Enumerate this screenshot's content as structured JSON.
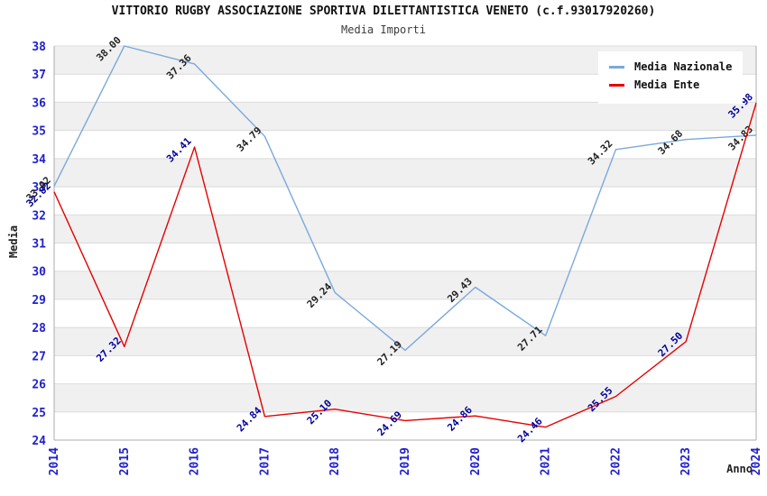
{
  "chart_data": {
    "type": "line",
    "title": "VITTORIO RUGBY ASSOCIAZIONE SPORTIVA DILETTANTISTICA VENETO (c.f.93017920260)",
    "subtitle": "Media Importi",
    "xlabel": "Anno",
    "ylabel": "Media",
    "x": [
      "2014",
      "2015",
      "2016",
      "2017",
      "2018",
      "2019",
      "2020",
      "2021",
      "2022",
      "2023",
      "2024"
    ],
    "series": [
      {
        "name": "Media Nazionale",
        "color": "#7AA9DC",
        "label_color": "#222222",
        "values": [
          33.02,
          38.0,
          37.36,
          34.79,
          29.24,
          27.19,
          29.43,
          27.71,
          34.32,
          34.68,
          34.83
        ]
      },
      {
        "name": "Media Ente",
        "color": "#E60000",
        "label_color": "#00009B",
        "values": [
          32.82,
          27.32,
          34.41,
          24.84,
          25.1,
          24.69,
          24.86,
          24.46,
          25.55,
          27.5,
          35.98
        ]
      }
    ],
    "ylim": [
      24,
      38
    ],
    "ytick_step": 1,
    "grid": "horizontal",
    "bands": "alternating-odd-gray",
    "legend_position": "top-right",
    "colors": {
      "tick_label": "#2121CC",
      "band": "#F0F0F0",
      "gridline": "#DBDBDB",
      "frame": "#ACACAC",
      "background": "#FFFFFF"
    }
  }
}
